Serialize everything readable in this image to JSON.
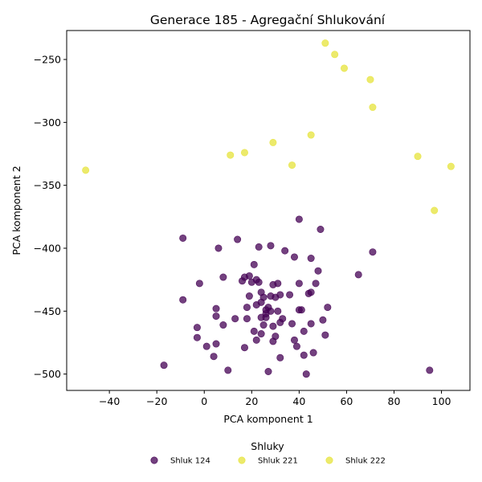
{
  "chart_data": {
    "type": "scatter",
    "title": "Generace 185 - Agregační Shlukování",
    "xlabel": "PCA komponent 1",
    "ylabel": "PCA komponent 2",
    "xlim": [
      -58,
      112
    ],
    "ylim": [
      -513,
      -227
    ],
    "xticks": [
      -40,
      -20,
      0,
      20,
      40,
      60,
      80,
      100
    ],
    "yticks": [
      -250,
      -300,
      -350,
      -400,
      -450,
      -500
    ],
    "legend_title": "Shluky",
    "legend_position": "bottom-center",
    "series": [
      {
        "name": "Shluk 124",
        "color": "#440154",
        "points": [
          [
            -9,
            -392
          ],
          [
            14,
            -393
          ],
          [
            6,
            -400
          ],
          [
            23,
            -399
          ],
          [
            28,
            -398
          ],
          [
            34,
            -402
          ],
          [
            40,
            -377
          ],
          [
            49,
            -385
          ],
          [
            38,
            -407
          ],
          [
            45,
            -408
          ],
          [
            71,
            -403
          ],
          [
            21,
            -413
          ],
          [
            48,
            -418
          ],
          [
            65,
            -421
          ],
          [
            8,
            -423
          ],
          [
            17,
            -423
          ],
          [
            16,
            -426
          ],
          [
            19,
            -422
          ],
          [
            20,
            -427
          ],
          [
            23,
            -427
          ],
          [
            22,
            -425
          ],
          [
            29,
            -429
          ],
          [
            31,
            -428
          ],
          [
            40,
            -428
          ],
          [
            47,
            -428
          ],
          [
            -2,
            -428
          ],
          [
            -9,
            -441
          ],
          [
            19,
            -438
          ],
          [
            24,
            -435
          ],
          [
            25,
            -439
          ],
          [
            28,
            -438
          ],
          [
            30,
            -439
          ],
          [
            32,
            -437
          ],
          [
            36,
            -437
          ],
          [
            44,
            -436
          ],
          [
            45,
            -435
          ],
          [
            5,
            -448
          ],
          [
            18,
            -447
          ],
          [
            22,
            -445
          ],
          [
            24,
            -443
          ],
          [
            26,
            -449
          ],
          [
            27,
            -447
          ],
          [
            28,
            -450
          ],
          [
            26,
            -452
          ],
          [
            31,
            -450
          ],
          [
            40,
            -449
          ],
          [
            41,
            -449
          ],
          [
            52,
            -447
          ],
          [
            5,
            -454
          ],
          [
            13,
            -456
          ],
          [
            18,
            -456
          ],
          [
            24,
            -455
          ],
          [
            26,
            -455
          ],
          [
            33,
            -456
          ],
          [
            32,
            -459
          ],
          [
            25,
            -461
          ],
          [
            29,
            -462
          ],
          [
            37,
            -460
          ],
          [
            45,
            -460
          ],
          [
            50,
            -457
          ],
          [
            8,
            -461
          ],
          [
            -3,
            -463
          ],
          [
            21,
            -466
          ],
          [
            24,
            -468
          ],
          [
            30,
            -470
          ],
          [
            42,
            -466
          ],
          [
            51,
            -469
          ],
          [
            -3,
            -471
          ],
          [
            22,
            -473
          ],
          [
            29,
            -474
          ],
          [
            38,
            -473
          ],
          [
            1,
            -478
          ],
          [
            5,
            -476
          ],
          [
            17,
            -479
          ],
          [
            39,
            -478
          ],
          [
            32,
            -487
          ],
          [
            42,
            -485
          ],
          [
            46,
            -483
          ],
          [
            4,
            -486
          ],
          [
            -17,
            -493
          ],
          [
            10,
            -497
          ],
          [
            27,
            -498
          ],
          [
            43,
            -500
          ],
          [
            95,
            -497
          ]
        ]
      },
      {
        "name": "Shluk 221",
        "color": "#e6e33a",
        "points": [
          [
            51,
            -237
          ],
          [
            55,
            -246
          ],
          [
            59,
            -257
          ],
          [
            70,
            -266
          ],
          [
            71,
            -288
          ],
          [
            45,
            -310
          ],
          [
            29,
            -316
          ],
          [
            17,
            -324
          ],
          [
            11,
            -326
          ],
          [
            37,
            -334
          ],
          [
            -50,
            -338
          ],
          [
            90,
            -327
          ],
          [
            104,
            -335
          ],
          [
            97,
            -370
          ]
        ]
      },
      {
        "name": "Shluk 222",
        "color": "#e6e33a",
        "points": []
      }
    ]
  }
}
